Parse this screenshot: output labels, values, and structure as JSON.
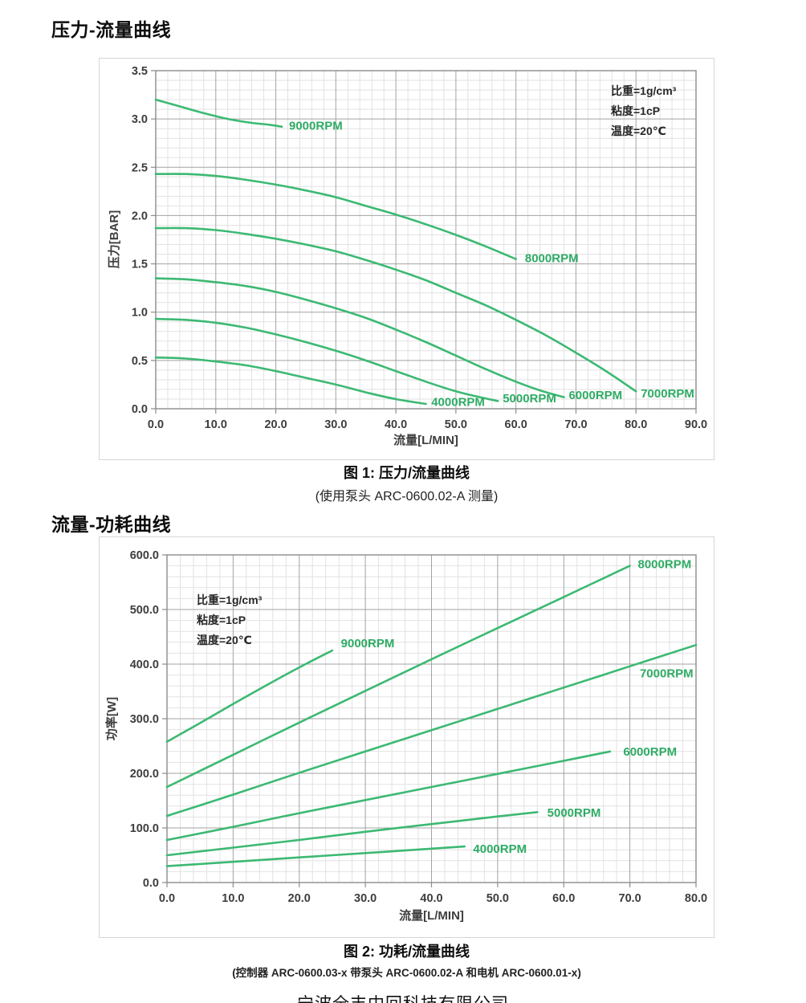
{
  "page": {
    "footer_partial": "宁波全丰中回科技有限公司"
  },
  "colors": {
    "curve_green": "#3cb973",
    "label_green": "#2eab64",
    "grid_minor": "#e2e2e2",
    "grid_major": "#a3a3a3",
    "frame": "#8c8c8c",
    "tick_text": "#3d3d3d"
  },
  "chart_data": [
    {
      "id": "pressure_flow",
      "type": "line",
      "title": "压力-流量曲线",
      "caption": [
        "图 1: 压力/流量曲线",
        "(使用泵头 ARC-0600.02-A 测量)"
      ],
      "xlabel": "流量[L/MIN]",
      "ylabel": "压力[BAR]",
      "xlim": [
        0,
        90
      ],
      "ylim": [
        0,
        3.5
      ],
      "x_major": 10,
      "x_minor": 2,
      "y_major": 0.5,
      "y_minor": 0.1,
      "tick_decimals": 1,
      "grid": true,
      "legend_position": "inline-end-labels",
      "annotation": {
        "lines": [
          "比重=1g/cm³",
          "粘度=1cP",
          "温度=20℃"
        ]
      },
      "series": [
        {
          "name": "9000RPM",
          "label": "9000RPM",
          "label_at": [
            22.2,
            2.93
          ],
          "points": [
            [
              0,
              3.2
            ],
            [
              4,
              3.13
            ],
            [
              8,
              3.06
            ],
            [
              12,
              3.0
            ],
            [
              16,
              2.96
            ],
            [
              19,
              2.94
            ],
            [
              21,
              2.92
            ]
          ]
        },
        {
          "name": "8000RPM",
          "label": "8000RPM",
          "label_at": [
            61.5,
            1.56
          ],
          "points": [
            [
              0,
              2.43
            ],
            [
              5,
              2.43
            ],
            [
              10,
              2.41
            ],
            [
              15,
              2.37
            ],
            [
              20,
              2.32
            ],
            [
              25,
              2.26
            ],
            [
              30,
              2.19
            ],
            [
              35,
              2.1
            ],
            [
              40,
              2.01
            ],
            [
              45,
              1.91
            ],
            [
              50,
              1.8
            ],
            [
              55,
              1.68
            ],
            [
              60,
              1.55
            ]
          ]
        },
        {
          "name": "7000RPM",
          "label": "7000RPM",
          "label_at": [
            80.8,
            0.16
          ],
          "points": [
            [
              0,
              1.87
            ],
            [
              5,
              1.87
            ],
            [
              10,
              1.85
            ],
            [
              15,
              1.81
            ],
            [
              20,
              1.76
            ],
            [
              25,
              1.7
            ],
            [
              30,
              1.63
            ],
            [
              35,
              1.54
            ],
            [
              40,
              1.44
            ],
            [
              45,
              1.33
            ],
            [
              50,
              1.2
            ],
            [
              55,
              1.07
            ],
            [
              60,
              0.92
            ],
            [
              65,
              0.76
            ],
            [
              70,
              0.58
            ],
            [
              75,
              0.39
            ],
            [
              80,
              0.18
            ]
          ]
        },
        {
          "name": "6000RPM",
          "label": "6000RPM",
          "label_at": [
            68.8,
            0.14
          ],
          "points": [
            [
              0,
              1.35
            ],
            [
              5,
              1.34
            ],
            [
              10,
              1.31
            ],
            [
              15,
              1.27
            ],
            [
              20,
              1.21
            ],
            [
              25,
              1.13
            ],
            [
              30,
              1.04
            ],
            [
              35,
              0.94
            ],
            [
              40,
              0.82
            ],
            [
              45,
              0.69
            ],
            [
              50,
              0.55
            ],
            [
              55,
              0.41
            ],
            [
              60,
              0.28
            ],
            [
              64,
              0.19
            ],
            [
              68,
              0.12
            ]
          ]
        },
        {
          "name": "5000RPM",
          "label": "5000RPM",
          "label_at": [
            57.8,
            0.11
          ],
          "points": [
            [
              0,
              0.93
            ],
            [
              5,
              0.92
            ],
            [
              10,
              0.89
            ],
            [
              15,
              0.84
            ],
            [
              20,
              0.77
            ],
            [
              25,
              0.69
            ],
            [
              30,
              0.6
            ],
            [
              35,
              0.5
            ],
            [
              40,
              0.39
            ],
            [
              45,
              0.28
            ],
            [
              50,
              0.18
            ],
            [
              54,
              0.12
            ],
            [
              57,
              0.08
            ]
          ]
        },
        {
          "name": "4000RPM",
          "label": "4000RPM",
          "label_at": [
            45.9,
            0.07
          ],
          "points": [
            [
              0,
              0.53
            ],
            [
              5,
              0.52
            ],
            [
              10,
              0.49
            ],
            [
              15,
              0.45
            ],
            [
              20,
              0.39
            ],
            [
              25,
              0.32
            ],
            [
              30,
              0.25
            ],
            [
              35,
              0.17
            ],
            [
              40,
              0.1
            ],
            [
              45,
              0.05
            ]
          ]
        }
      ]
    },
    {
      "id": "power_flow",
      "type": "line",
      "title": "流量-功耗曲线",
      "caption": [
        "图 2: 功耗/流量曲线",
        "(控制器 ARC-0600.03-x 带泵头 ARC-0600.02-A 和电机 ARC-0600.01-x)"
      ],
      "xlabel": "流量[L/MIN]",
      "ylabel": "功率[W]",
      "xlim": [
        0,
        80
      ],
      "ylim": [
        0,
        600
      ],
      "x_major": 10,
      "x_minor": 2,
      "y_major": 100,
      "y_minor": 20,
      "tick_decimals": 1,
      "grid": true,
      "legend_position": "inline-end-labels",
      "annotation": {
        "lines": [
          "比重=1g/cm³",
          "粘度=1cP",
          "温度=20℃"
        ]
      },
      "series": [
        {
          "name": "9000RPM",
          "label": "9000RPM",
          "label_at": [
            26.3,
            438
          ],
          "points": [
            [
              0,
              258
            ],
            [
              5,
              292
            ],
            [
              10,
              327
            ],
            [
              15,
              361
            ],
            [
              20,
              394
            ],
            [
              25,
              425
            ]
          ]
        },
        {
          "name": "8000RPM",
          "label": "8000RPM",
          "label_at": [
            71.2,
            583
          ],
          "points": [
            [
              0,
              175
            ],
            [
              10,
              234
            ],
            [
              20,
              293
            ],
            [
              30,
              351
            ],
            [
              40,
              409
            ],
            [
              50,
              466
            ],
            [
              60,
              523
            ],
            [
              70,
              580
            ]
          ]
        },
        {
          "name": "7000RPM",
          "label": "7000RPM",
          "label_at": [
            71.5,
            383
          ],
          "points": [
            [
              0,
              122
            ],
            [
              10,
              161
            ],
            [
              20,
              201
            ],
            [
              30,
              240
            ],
            [
              40,
              279
            ],
            [
              50,
              318
            ],
            [
              60,
              357
            ],
            [
              70,
              396
            ],
            [
              80,
              435
            ]
          ]
        },
        {
          "name": "6000RPM",
          "label": "6000RPM",
          "label_at": [
            69.0,
            240
          ],
          "points": [
            [
              0,
              78
            ],
            [
              10,
              102
            ],
            [
              20,
              127
            ],
            [
              30,
              151
            ],
            [
              40,
              175
            ],
            [
              50,
              199
            ],
            [
              60,
              223
            ],
            [
              67,
              240
            ]
          ]
        },
        {
          "name": "5000RPM",
          "label": "5000RPM",
          "label_at": [
            57.5,
            128
          ],
          "points": [
            [
              0,
              50
            ],
            [
              10,
              64
            ],
            [
              20,
              78
            ],
            [
              30,
              93
            ],
            [
              40,
              107
            ],
            [
              50,
              121
            ],
            [
              56,
              129
            ]
          ]
        },
        {
          "name": "4000RPM",
          "label": "4000RPM",
          "label_at": [
            46.3,
            62
          ],
          "points": [
            [
              0,
              30
            ],
            [
              10,
              38
            ],
            [
              20,
              46
            ],
            [
              30,
              54
            ],
            [
              40,
              62
            ],
            [
              45,
              66
            ]
          ]
        }
      ]
    }
  ]
}
